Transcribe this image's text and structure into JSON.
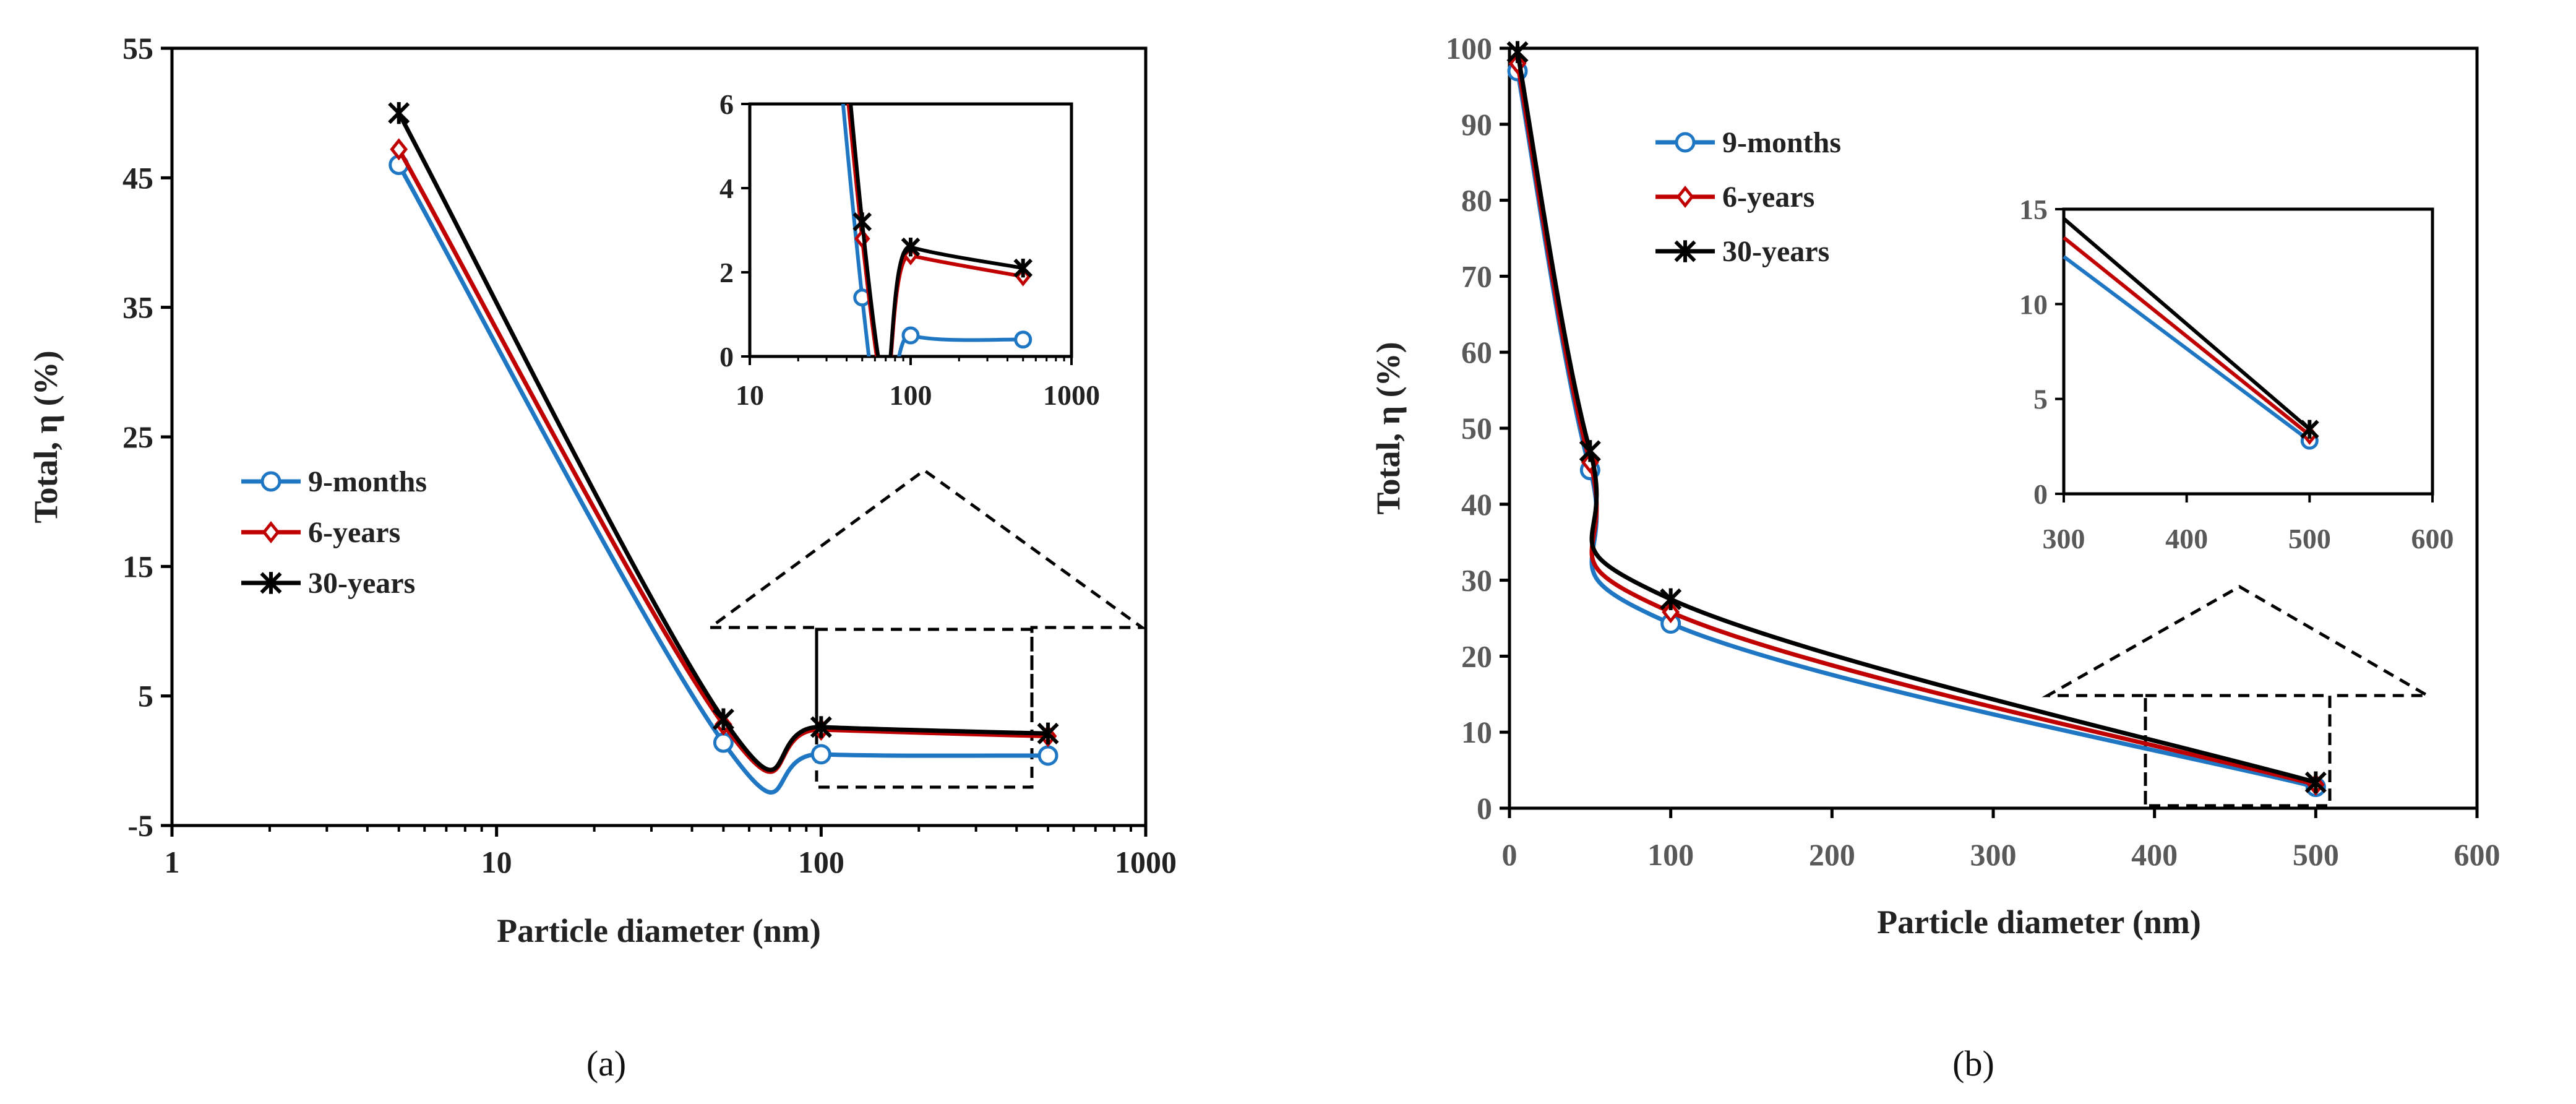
{
  "chart_data": [
    {
      "id": "a",
      "type": "line",
      "panel_label": "(a)",
      "xscale": "log",
      "xlim": [
        1,
        1000
      ],
      "ylim": [
        -5,
        55
      ],
      "xticks": [
        1,
        10,
        100,
        1000
      ],
      "xtick_labels": [
        "1",
        "10",
        "100",
        "1000"
      ],
      "yticks": [
        -5,
        5,
        15,
        25,
        35,
        45,
        55
      ],
      "ytick_labels": [
        "-5",
        "5",
        "15",
        "25",
        "35",
        "45",
        "55"
      ],
      "xlabel": "Particle diameter (nm)",
      "ylabel": "Total, η (%)",
      "legend_position": "center-left",
      "x": [
        5,
        50,
        100,
        500
      ],
      "series": [
        {
          "name": "9-months",
          "color": "#1f77c4",
          "marker": "circle",
          "values": [
            46.0,
            1.4,
            0.5,
            0.4
          ]
        },
        {
          "name": "6-years",
          "color": "#c00000",
          "marker": "diamond",
          "values": [
            47.2,
            2.8,
            2.4,
            1.9
          ]
        },
        {
          "name": "30-years",
          "color": "#000000",
          "marker": "asterisk",
          "values": [
            50.0,
            3.2,
            2.6,
            2.1
          ]
        }
      ],
      "inset": {
        "xscale": "log",
        "xlim": [
          10,
          1000
        ],
        "ylim": [
          0,
          6
        ],
        "xticks": [
          10,
          100,
          1000
        ],
        "xtick_labels": [
          "10",
          "100",
          "1000"
        ],
        "yticks": [
          0,
          2,
          4,
          6
        ],
        "ytick_labels": [
          "0",
          "2",
          "4",
          "6"
        ]
      }
    },
    {
      "id": "b",
      "type": "line",
      "panel_label": "(b)",
      "xscale": "linear",
      "xlim": [
        0,
        600
      ],
      "ylim": [
        0,
        100
      ],
      "xticks": [
        0,
        100,
        200,
        300,
        400,
        500,
        600
      ],
      "xtick_labels": [
        "0",
        "100",
        "200",
        "300",
        "400",
        "500",
        "600"
      ],
      "yticks": [
        0,
        10,
        20,
        30,
        40,
        50,
        60,
        70,
        80,
        90,
        100
      ],
      "ytick_labels": [
        "0",
        "10",
        "20",
        "30",
        "40",
        "50",
        "60",
        "70",
        "80",
        "90",
        "100"
      ],
      "xlabel": "Particle diameter (nm)",
      "ylabel": "Total, η (%)",
      "legend_position": "top-left",
      "x": [
        5,
        50,
        100,
        500
      ],
      "series": [
        {
          "name": "9-months",
          "color": "#1f77c4",
          "marker": "circle",
          "values": [
            97.0,
            44.5,
            24.3,
            2.8
          ]
        },
        {
          "name": "6-years",
          "color": "#c00000",
          "marker": "diamond",
          "values": [
            98.0,
            45.5,
            25.8,
            3.1
          ]
        },
        {
          "name": "30-years",
          "color": "#000000",
          "marker": "asterisk",
          "values": [
            99.5,
            47.0,
            27.5,
            3.4
          ]
        }
      ],
      "inset": {
        "xscale": "linear",
        "xlim": [
          300,
          600
        ],
        "ylim": [
          0,
          15
        ],
        "xticks": [
          300,
          400,
          500,
          600
        ],
        "xtick_labels": [
          "300",
          "400",
          "500",
          "600"
        ],
        "yticks": [
          0,
          5,
          10,
          15
        ],
        "ytick_labels": [
          "0",
          "5",
          "10",
          "15"
        ],
        "series_values": [
          [
            300,
            12.5,
            500,
            2.8
          ],
          [
            300,
            13.5,
            500,
            3.1
          ],
          [
            300,
            14.5,
            500,
            3.4
          ]
        ]
      }
    }
  ]
}
